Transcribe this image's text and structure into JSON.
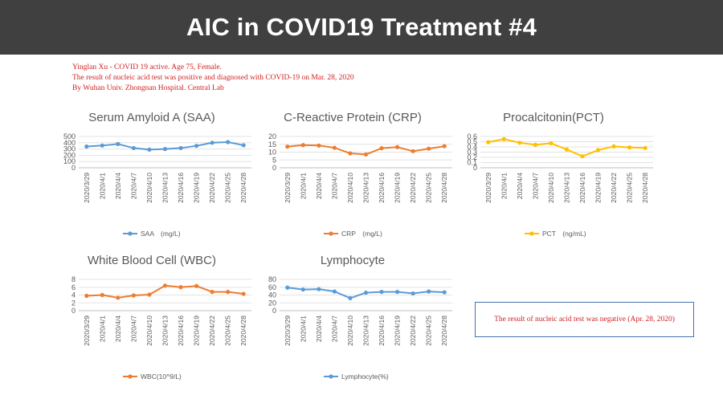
{
  "header": {
    "title": "AIC in COVID19 Treatment  #4"
  },
  "patient_info": {
    "line1": "Yinglan Xu - COVID 19 active. Age 75, Female.",
    "line2": "The result of nucleic acid test was positive and diagnosed with COVID-19 on Mar. 28, 2020",
    "line3": "By Wuhan Univ. Zhongnan Hospital. Central Lab"
  },
  "result_box": {
    "text": "The result of nucleic acid test was negative (Apr. 28, 2020)"
  },
  "chart_data": [
    {
      "id": "saa",
      "type": "line",
      "title": "Serum Amyloid A (SAA)",
      "categories": [
        "2020/3/29",
        "2020/4/1",
        "2020/4/4",
        "2020/4/7",
        "2020/4/10",
        "2020/4/13",
        "2020/4/16",
        "2020/4/19",
        "2020/4/22",
        "2020/4/25",
        "2020/4/28"
      ],
      "series": [
        {
          "name": "SAA　(mg/L)",
          "values": [
            340,
            355,
            380,
            315,
            290,
            300,
            315,
            350,
            400,
            410,
            360
          ],
          "color": "#5b9bd5"
        }
      ],
      "ylim": [
        0,
        500
      ],
      "yticks": [
        0,
        100,
        200,
        300,
        400,
        500
      ],
      "ytick_labels": [
        "0",
        "100",
        "200",
        "300",
        "400",
        "500"
      ],
      "legend": "bottom"
    },
    {
      "id": "crp",
      "type": "line",
      "title": "C-Reactive Protein (CRP)",
      "categories": [
        "2020/3/29",
        "2020/4/1",
        "2020/4/4",
        "2020/4/7",
        "2020/4/10",
        "2020/4/13",
        "2020/4/16",
        "2020/4/19",
        "2020/4/22",
        "2020/4/25",
        "2020/4/28"
      ],
      "series": [
        {
          "name": "CRP　(mg/L)",
          "values": [
            13.5,
            14.5,
            14.2,
            12.8,
            9.2,
            8.5,
            12.5,
            13.2,
            10.6,
            12.2,
            13.8
          ],
          "color": "#ed7d31"
        }
      ],
      "ylim": [
        0,
        20
      ],
      "yticks": [
        0,
        5,
        10,
        15,
        20
      ],
      "ytick_labels": [
        "0",
        "5",
        "10",
        "15",
        "20"
      ],
      "legend": "bottom"
    },
    {
      "id": "pct",
      "type": "line",
      "title": "Procalcitonin(PCT)",
      "categories": [
        "2020/3/29",
        "2020/4/1",
        "2020/4/4",
        "2020/4/7",
        "2020/4/10",
        "2020/4/13",
        "2020/4/16",
        "2020/4/19",
        "2020/4/22",
        "2020/4/25",
        "2020/4/28"
      ],
      "series": [
        {
          "name": "PCT　(ng/mL)",
          "values": [
            0.49,
            0.55,
            0.48,
            0.44,
            0.47,
            0.35,
            0.22,
            0.34,
            0.41,
            0.39,
            0.38
          ],
          "color": "#ffc000"
        }
      ],
      "ylim": [
        0,
        0.6
      ],
      "yticks": [
        0,
        0.1,
        0.2,
        0.3,
        0.4,
        0.5,
        0.6
      ],
      "ytick_labels": [
        "0",
        "0.1",
        "0.2",
        "0.3",
        "0.4",
        "0.5",
        "0.6"
      ],
      "legend": "bottom"
    },
    {
      "id": "wbc",
      "type": "line",
      "title": "White Blood Cell (WBC)",
      "categories": [
        "2020/3/29",
        "2020/4/1",
        "2020/4/4",
        "2020/4/7",
        "2020/4/10",
        "2020/4/13",
        "2020/4/16",
        "2020/4/19",
        "2020/4/22",
        "2020/4/25",
        "2020/4/28"
      ],
      "series": [
        {
          "name": "WBC(10^9/L)",
          "values": [
            3.8,
            4.0,
            3.3,
            3.9,
            4.1,
            6.4,
            6.0,
            6.3,
            4.8,
            4.8,
            4.3
          ],
          "color": "#ed7d31"
        }
      ],
      "ylim": [
        0,
        8
      ],
      "yticks": [
        0,
        2,
        4,
        6,
        8
      ],
      "ytick_labels": [
        "0",
        "2",
        "4",
        "6",
        "8"
      ],
      "legend": "bottom"
    },
    {
      "id": "lym",
      "type": "line",
      "title": "Lymphocyte",
      "categories": [
        "2020/3/29",
        "2020/4/1",
        "2020/4/4",
        "2020/4/7",
        "2020/4/10",
        "2020/4/13",
        "2020/4/16",
        "2020/4/19",
        "2020/4/22",
        "2020/4/25",
        "2020/4/28"
      ],
      "series": [
        {
          "name": "Lymphocyte(%)",
          "values": [
            59,
            54,
            55,
            49,
            32,
            46,
            48,
            48,
            44,
            49,
            47
          ],
          "color": "#5b9bd5"
        }
      ],
      "ylim": [
        0,
        80
      ],
      "yticks": [
        0,
        20,
        40,
        60,
        80
      ],
      "ytick_labels": [
        "0",
        "20",
        "40",
        "60",
        "80"
      ],
      "legend": "bottom"
    }
  ]
}
